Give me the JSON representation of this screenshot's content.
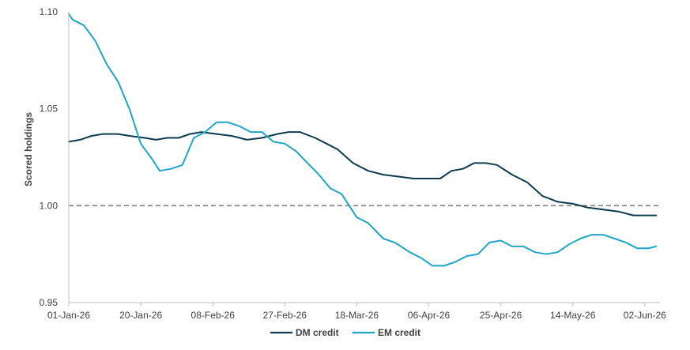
{
  "chart_data": {
    "type": "line",
    "title": "",
    "xlabel": "",
    "ylabel": "Scored holdings",
    "ylim": [
      0.95,
      1.1
    ],
    "yticks": [
      0.95,
      1.0,
      1.05,
      1.1
    ],
    "ytick_labels": [
      "0.95",
      "1.00",
      "1.05",
      "1.10"
    ],
    "xlim": [
      "2026-01-01",
      "2026-06-06"
    ],
    "xticks": [
      "2026-01-01",
      "2026-01-20",
      "2026-02-08",
      "2026-02-27",
      "2026-03-18",
      "2026-04-06",
      "2026-04-25",
      "2026-05-14",
      "2026-06-02"
    ],
    "xtick_labels": [
      "01-Jan-26",
      "20-Jan-26",
      "08-Feb-26",
      "27-Feb-26",
      "18-Mar-26",
      "06-Apr-26",
      "25-Apr-26",
      "14-May-26",
      "02-Jun-26"
    ],
    "grid": false,
    "legend": "bottom",
    "reference_line": {
      "y": 1.0,
      "style": "dashed",
      "color": "#7f7f7f"
    },
    "series": [
      {
        "name": "DM credit",
        "color": "#0d3b4f",
        "points": [
          [
            "2026-01-01",
            1.033
          ],
          [
            "2026-01-04",
            1.034
          ],
          [
            "2026-01-07",
            1.036
          ],
          [
            "2026-01-10",
            1.037
          ],
          [
            "2026-01-14",
            1.037
          ],
          [
            "2026-01-17",
            1.036
          ],
          [
            "2026-01-21",
            1.035
          ],
          [
            "2026-01-24",
            1.034
          ],
          [
            "2026-01-27",
            1.035
          ],
          [
            "2026-01-30",
            1.035
          ],
          [
            "2026-02-02",
            1.037
          ],
          [
            "2026-02-05",
            1.038
          ],
          [
            "2026-02-09",
            1.037
          ],
          [
            "2026-02-13",
            1.036
          ],
          [
            "2026-02-17",
            1.034
          ],
          [
            "2026-02-21",
            1.035
          ],
          [
            "2026-02-25",
            1.037
          ],
          [
            "2026-02-28",
            1.038
          ],
          [
            "2026-03-03",
            1.038
          ],
          [
            "2026-03-07",
            1.035
          ],
          [
            "2026-03-10",
            1.032
          ],
          [
            "2026-03-13",
            1.029
          ],
          [
            "2026-03-17",
            1.022
          ],
          [
            "2026-03-21",
            1.018
          ],
          [
            "2026-03-25",
            1.016
          ],
          [
            "2026-03-29",
            1.015
          ],
          [
            "2026-04-02",
            1.014
          ],
          [
            "2026-04-06",
            1.014
          ],
          [
            "2026-04-09",
            1.014
          ],
          [
            "2026-04-12",
            1.018
          ],
          [
            "2026-04-15",
            1.019
          ],
          [
            "2026-04-18",
            1.022
          ],
          [
            "2026-04-21",
            1.022
          ],
          [
            "2026-04-24",
            1.021
          ],
          [
            "2026-04-28",
            1.016
          ],
          [
            "2026-05-02",
            1.012
          ],
          [
            "2026-05-06",
            1.005
          ],
          [
            "2026-05-10",
            1.002
          ],
          [
            "2026-05-14",
            1.001
          ],
          [
            "2026-05-18",
            0.999
          ],
          [
            "2026-05-22",
            0.998
          ],
          [
            "2026-05-26",
            0.997
          ],
          [
            "2026-05-30",
            0.995
          ],
          [
            "2026-06-05",
            0.995
          ]
        ]
      },
      {
        "name": "EM credit",
        "color": "#1ea5c8",
        "points": [
          [
            "2026-01-01",
            1.099
          ],
          [
            "2026-01-02",
            1.096
          ],
          [
            "2026-01-05",
            1.093
          ],
          [
            "2026-01-08",
            1.085
          ],
          [
            "2026-01-11",
            1.073
          ],
          [
            "2026-01-14",
            1.064
          ],
          [
            "2026-01-17",
            1.05
          ],
          [
            "2026-01-20",
            1.032
          ],
          [
            "2026-01-23",
            1.024
          ],
          [
            "2026-01-25",
            1.018
          ],
          [
            "2026-01-28",
            1.019
          ],
          [
            "2026-01-31",
            1.021
          ],
          [
            "2026-02-03",
            1.035
          ],
          [
            "2026-02-06",
            1.038
          ],
          [
            "2026-02-09",
            1.043
          ],
          [
            "2026-02-12",
            1.043
          ],
          [
            "2026-02-15",
            1.041
          ],
          [
            "2026-02-18",
            1.038
          ],
          [
            "2026-02-21",
            1.038
          ],
          [
            "2026-02-24",
            1.033
          ],
          [
            "2026-02-27",
            1.032
          ],
          [
            "2026-03-02",
            1.028
          ],
          [
            "2026-03-05",
            1.022
          ],
          [
            "2026-03-08",
            1.016
          ],
          [
            "2026-03-11",
            1.009
          ],
          [
            "2026-03-14",
            1.006
          ],
          [
            "2026-03-18",
            0.994
          ],
          [
            "2026-03-21",
            0.991
          ],
          [
            "2026-03-25",
            0.983
          ],
          [
            "2026-03-28",
            0.981
          ],
          [
            "2026-04-01",
            0.976
          ],
          [
            "2026-04-04",
            0.973
          ],
          [
            "2026-04-07",
            0.969
          ],
          [
            "2026-04-10",
            0.969
          ],
          [
            "2026-04-13",
            0.971
          ],
          [
            "2026-04-16",
            0.974
          ],
          [
            "2026-04-19",
            0.975
          ],
          [
            "2026-04-22",
            0.981
          ],
          [
            "2026-04-25",
            0.982
          ],
          [
            "2026-04-28",
            0.979
          ],
          [
            "2026-05-01",
            0.979
          ],
          [
            "2026-05-04",
            0.976
          ],
          [
            "2026-05-07",
            0.975
          ],
          [
            "2026-05-10",
            0.976
          ],
          [
            "2026-05-13",
            0.98
          ],
          [
            "2026-05-16",
            0.983
          ],
          [
            "2026-05-19",
            0.985
          ],
          [
            "2026-05-22",
            0.985
          ],
          [
            "2026-05-25",
            0.983
          ],
          [
            "2026-05-28",
            0.981
          ],
          [
            "2026-05-31",
            0.978
          ],
          [
            "2026-06-03",
            0.978
          ],
          [
            "2026-06-05",
            0.979
          ]
        ]
      }
    ]
  }
}
